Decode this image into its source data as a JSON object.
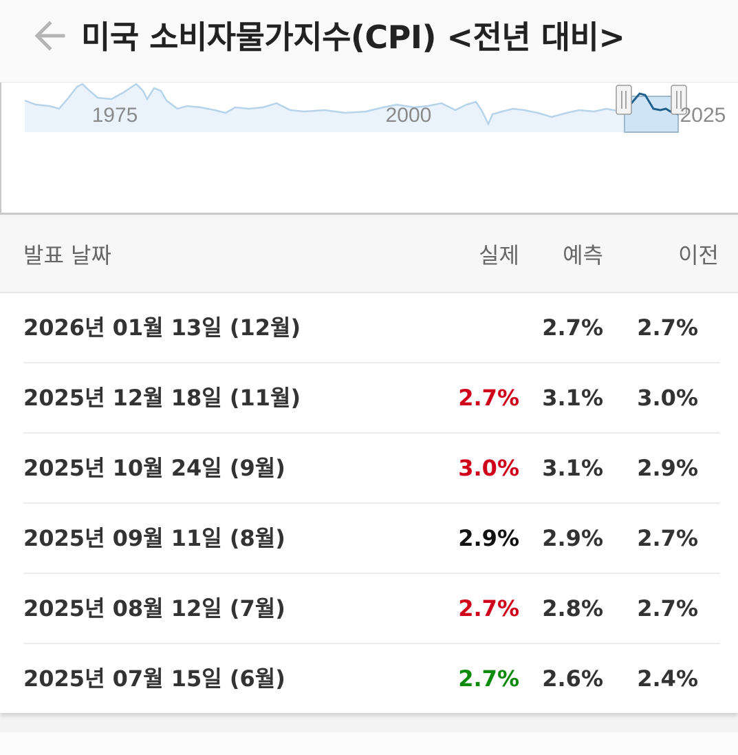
{
  "header": {
    "title": "미국 소비자물가지수(CPI) <전년 대비>",
    "back_icon": "arrow-left-icon"
  },
  "navigator": {
    "year_labels": [
      "1975",
      "2000",
      "2025"
    ],
    "line_color": "#b7d3ea",
    "highlight_color": "#1f5f8b",
    "fill_color": "#cfe4f7"
  },
  "table": {
    "headers": {
      "date": "발표 날짜",
      "actual": "실제",
      "forecast": "예측",
      "previous": "이전"
    },
    "rows": [
      {
        "date": "2026년 01월 13일 (12월)",
        "actual": "",
        "actual_color": "black",
        "forecast": "2.7%",
        "previous": "2.7%"
      },
      {
        "date": "2025년 12월 18일 (11월)",
        "actual": "2.7%",
        "actual_color": "red",
        "forecast": "3.1%",
        "previous": "3.0%"
      },
      {
        "date": "2025년 10월 24일 (9월)",
        "actual": "3.0%",
        "actual_color": "red",
        "forecast": "3.1%",
        "previous": "2.9%"
      },
      {
        "date": "2025년 09월 11일 (8월)",
        "actual": "2.9%",
        "actual_color": "black",
        "forecast": "2.9%",
        "previous": "2.7%"
      },
      {
        "date": "2025년 08월 12일 (7월)",
        "actual": "2.7%",
        "actual_color": "red",
        "forecast": "2.8%",
        "previous": "2.7%"
      },
      {
        "date": "2025년 07월 15일 (6월)",
        "actual": "2.7%",
        "actual_color": "green",
        "forecast": "2.6%",
        "previous": "2.4%"
      }
    ]
  },
  "colors": {
    "red": "#d0021b",
    "green": "#0b8a0b",
    "black": "#111111"
  }
}
